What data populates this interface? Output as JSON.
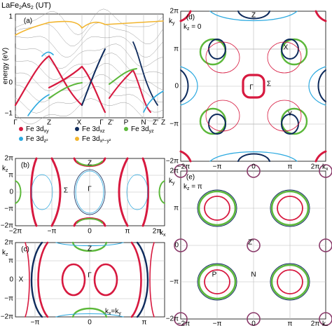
{
  "title": [
    "LaFe",
    "2",
    "As",
    "2",
    " (UT)"
  ],
  "panel_a": {
    "label": "(a)",
    "y_label": "energy (eV)",
    "y_ticks": [
      "1",
      "0",
      "−1"
    ],
    "x_ticks": [
      "Γ",
      "Z",
      "X",
      "Γ",
      "Z'",
      "P",
      "N",
      "Z'",
      "Z"
    ]
  },
  "legend": [
    {
      "prefix": "Fe 3d",
      "sub": "xy",
      "color": "#d7193f"
    },
    {
      "prefix": "Fe 3d",
      "sub": "xz",
      "color": "#0d2a5c"
    },
    {
      "prefix": "Fe 3d",
      "sub": "yz",
      "color": "#5cb83a"
    },
    {
      "prefix": "Fe 3d",
      "sub": "z²",
      "color": "#2ba9e0"
    },
    {
      "prefix": "Fe 3d",
      "sub": "x²−y²",
      "color": "#f2b52e"
    }
  ],
  "panel_b": {
    "label": "(b)",
    "y_label": [
      "k",
      "z"
    ],
    "x_label": [
      "k",
      "x"
    ],
    "y_ticks": [
      "2π",
      "π",
      "0",
      "−π",
      "−2π"
    ],
    "x_ticks": [
      "−2π",
      "−π",
      "0",
      "π",
      "2π"
    ],
    "points": [
      "Z",
      "Γ",
      "Σ"
    ]
  },
  "panel_c": {
    "label": "(c)",
    "y_label": [
      "k",
      "z"
    ],
    "x_label": [
      "k",
      "x",
      "=k",
      "y"
    ],
    "y_ticks": [
      "2π",
      "π",
      "0",
      "−π",
      "−2π"
    ],
    "x_ticks": [
      "−π",
      "0",
      "π"
    ],
    "points": [
      "Z",
      "Γ",
      "X"
    ]
  },
  "panel_d": {
    "label": "(d)",
    "condition": [
      "k",
      "z",
      " = 0"
    ],
    "y_label": [
      "k",
      "y"
    ],
    "x_label": [
      "k",
      "x"
    ],
    "y_ticks": [
      "2π",
      "π",
      "0",
      "−π",
      "−2π"
    ],
    "x_ticks": [
      "−2π",
      "−π",
      "0",
      "π",
      "2π"
    ],
    "points": [
      "Z",
      "X",
      "Γ",
      "Σ",
      "Y"
    ]
  },
  "panel_e": {
    "label": "(e)",
    "condition": [
      "k",
      "z",
      " = π"
    ],
    "y_label": [
      "k",
      "y"
    ],
    "x_label": [
      "k",
      "x"
    ],
    "y_ticks": [
      "2π",
      "π",
      "0",
      "−π",
      "−2π"
    ],
    "x_ticks": [
      "−2π",
      "−π",
      "0",
      "π",
      "2π"
    ],
    "points": [
      "Z'",
      "P",
      "N"
    ]
  }
}
